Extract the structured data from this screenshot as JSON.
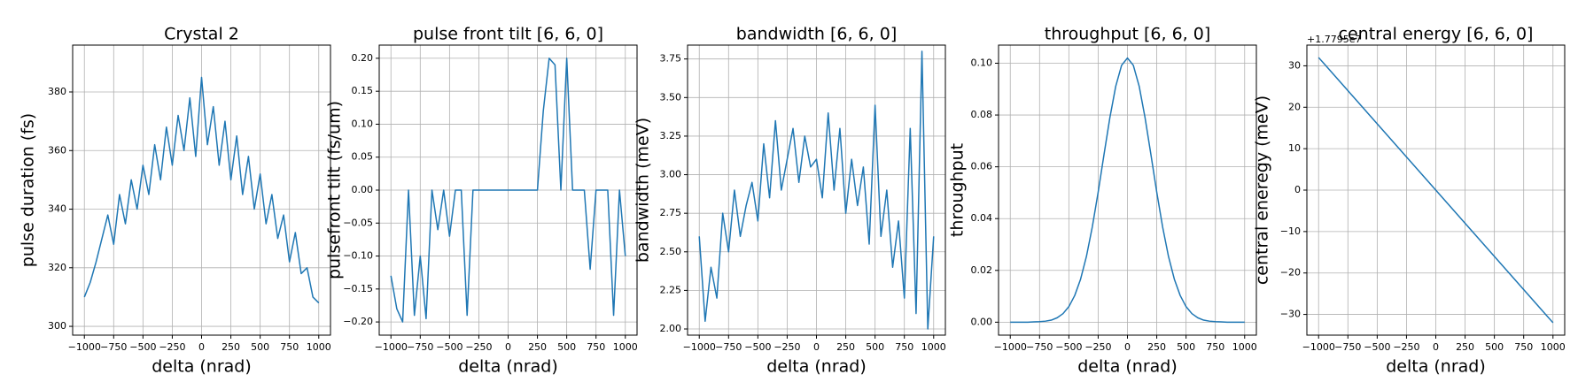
{
  "chart_data": [
    {
      "type": "line",
      "title": "Crystal 2",
      "xlabel": "delta (nrad)",
      "ylabel": "pulse duration (fs)",
      "color": "#1f77b4",
      "grid": true,
      "x": [
        -1000,
        -950,
        -900,
        -850,
        -800,
        -750,
        -700,
        -650,
        -600,
        -550,
        -500,
        -450,
        -400,
        -350,
        -300,
        -250,
        -200,
        -150,
        -100,
        -50,
        0,
        50,
        100,
        150,
        200,
        250,
        300,
        350,
        400,
        450,
        500,
        550,
        600,
        650,
        700,
        750,
        800,
        850,
        900,
        950,
        1000
      ],
      "values": [
        310,
        315,
        322,
        330,
        338,
        328,
        345,
        335,
        350,
        340,
        355,
        345,
        362,
        350,
        368,
        355,
        372,
        360,
        378,
        358,
        385,
        362,
        375,
        355,
        370,
        350,
        365,
        345,
        358,
        340,
        352,
        335,
        345,
        330,
        338,
        322,
        332,
        318,
        320,
        310,
        308
      ],
      "xlim": [
        -1100,
        1100
      ],
      "xticks": [
        {
          "value": -1000,
          "label": "−1000"
        },
        {
          "value": -750,
          "label": "−750"
        },
        {
          "value": -500,
          "label": "−500"
        },
        {
          "value": -250,
          "label": "−250"
        },
        0,
        250,
        500,
        750,
        1000
      ],
      "ylim": [
        297,
        396
      ],
      "yticks": [
        300,
        320,
        340,
        360,
        380
      ]
    },
    {
      "type": "line",
      "title": "pulse front tilt [6, 6, 0]",
      "xlabel": "delta (nrad)",
      "ylabel": "pulsefront tilt (fs/um)",
      "color": "#1f77b4",
      "grid": true,
      "x": [
        -1000,
        -950,
        -900,
        -850,
        -800,
        -750,
        -700,
        -650,
        -600,
        -550,
        -500,
        -450,
        -400,
        -350,
        -300,
        -250,
        -200,
        -150,
        -100,
        -50,
        0,
        50,
        100,
        150,
        200,
        250,
        300,
        350,
        400,
        450,
        500,
        550,
        600,
        650,
        700,
        750,
        800,
        850,
        900,
        950,
        1000
      ],
      "values": [
        -0.13,
        -0.18,
        -0.2,
        0,
        -0.19,
        -0.1,
        -0.195,
        0,
        -0.06,
        0,
        -0.07,
        0,
        0,
        -0.19,
        0,
        0,
        0,
        0,
        0,
        0,
        0,
        0,
        0,
        0,
        0,
        0,
        0.12,
        0.2,
        0.19,
        0,
        0.2,
        0,
        0,
        0,
        -0.12,
        0,
        0,
        0,
        -0.19,
        0,
        -0.1
      ],
      "xlim": [
        -1100,
        1100
      ],
      "xticks": [
        {
          "value": -1000,
          "label": "−1000"
        },
        {
          "value": -750,
          "label": "−750"
        },
        {
          "value": -500,
          "label": "−500"
        },
        {
          "value": -250,
          "label": "−250"
        },
        0,
        250,
        500,
        750,
        1000
      ],
      "ylim": [
        -0.22,
        0.22
      ],
      "yticks": [
        {
          "value": -0.2,
          "label": "−0.20"
        },
        {
          "value": -0.15,
          "label": "−0.15"
        },
        {
          "value": -0.1,
          "label": "−0.10"
        },
        {
          "value": -0.05,
          "label": "−0.05"
        },
        {
          "value": 0,
          "label": "0.00"
        },
        {
          "value": 0.05,
          "label": "0.05"
        },
        {
          "value": 0.1,
          "label": "0.10"
        },
        {
          "value": 0.15,
          "label": "0.15"
        },
        {
          "value": 0.2,
          "label": "0.20"
        }
      ]
    },
    {
      "type": "line",
      "title": "bandwidth [6, 6, 0]",
      "xlabel": "delta (nrad)",
      "ylabel": "bandwidth (meV)",
      "color": "#1f77b4",
      "grid": true,
      "x": [
        -1000,
        -950,
        -900,
        -850,
        -800,
        -750,
        -700,
        -650,
        -600,
        -550,
        -500,
        -450,
        -400,
        -350,
        -300,
        -250,
        -200,
        -150,
        -100,
        -50,
        0,
        50,
        100,
        150,
        200,
        250,
        300,
        350,
        400,
        450,
        500,
        550,
        600,
        650,
        700,
        750,
        800,
        850,
        900,
        950,
        1000
      ],
      "values": [
        2.6,
        2.05,
        2.4,
        2.2,
        2.75,
        2.5,
        2.9,
        2.6,
        2.8,
        2.95,
        2.7,
        3.2,
        2.85,
        3.35,
        2.9,
        3.1,
        3.3,
        2.95,
        3.25,
        3.05,
        3.1,
        2.85,
        3.4,
        2.9,
        3.3,
        2.75,
        3.1,
        2.8,
        3.05,
        2.55,
        3.45,
        2.6,
        2.9,
        2.4,
        2.7,
        2.2,
        3.3,
        2.1,
        3.8,
        2.0,
        2.6
      ],
      "xlim": [
        -1100,
        1100
      ],
      "xticks": [
        {
          "value": -1000,
          "label": "−1000"
        },
        {
          "value": -750,
          "label": "−750"
        },
        {
          "value": -500,
          "label": "−500"
        },
        {
          "value": -250,
          "label": "−250"
        },
        0,
        250,
        500,
        750,
        1000
      ],
      "ylim": [
        1.96,
        3.84
      ],
      "yticks": [
        {
          "value": 2,
          "label": "2.00"
        },
        2.25,
        {
          "value": 2.5,
          "label": "2.50"
        },
        2.75,
        {
          "value": 3,
          "label": "3.00"
        },
        3.25,
        {
          "value": 3.5,
          "label": "3.50"
        },
        3.75
      ]
    },
    {
      "type": "line",
      "title": "throughput [6, 6, 0]",
      "xlabel": "delta (nrad)",
      "ylabel": "throughput",
      "color": "#1f77b4",
      "grid": true,
      "x": [
        -1000,
        -950,
        -900,
        -850,
        -800,
        -750,
        -700,
        -650,
        -600,
        -550,
        -500,
        -450,
        -400,
        -350,
        -300,
        -250,
        -200,
        -150,
        -100,
        -50,
        0,
        50,
        100,
        150,
        200,
        250,
        300,
        350,
        400,
        450,
        500,
        550,
        600,
        650,
        700,
        750,
        800,
        850,
        900,
        950,
        1000
      ],
      "values": [
        0,
        0,
        0,
        0,
        0.0001,
        0.0002,
        0.0004,
        0.0008,
        0.0017,
        0.0033,
        0.006,
        0.0103,
        0.0166,
        0.0254,
        0.0368,
        0.0502,
        0.0648,
        0.079,
        0.0911,
        0.0992,
        0.102,
        0.0992,
        0.0911,
        0.079,
        0.0648,
        0.0502,
        0.0368,
        0.0254,
        0.0166,
        0.0103,
        0.006,
        0.0033,
        0.0017,
        0.0008,
        0.0004,
        0.0002,
        0.0001,
        0,
        0,
        0,
        0
      ],
      "xlim": [
        -1100,
        1100
      ],
      "xticks": [
        {
          "value": -1000,
          "label": "−1000"
        },
        {
          "value": -750,
          "label": "−750"
        },
        {
          "value": -500,
          "label": "−500"
        },
        {
          "value": -250,
          "label": "−250"
        },
        0,
        250,
        500,
        750,
        1000
      ],
      "ylim": [
        -0.005,
        0.107
      ],
      "yticks": [
        {
          "value": 0,
          "label": "0.00"
        },
        0.02,
        0.04,
        0.06,
        0.08,
        {
          "value": 0.1,
          "label": "0.10"
        }
      ]
    },
    {
      "type": "line",
      "title": "central energy [6, 6, 0]",
      "xlabel": "delta (nrad)",
      "ylabel": "central eneregy (meV)",
      "offset_text": "+1.7795e7",
      "color": "#1f77b4",
      "grid": true,
      "x": [
        -1000,
        -950,
        -900,
        -850,
        -800,
        -750,
        -700,
        -650,
        -600,
        -550,
        -500,
        -450,
        -400,
        -350,
        -300,
        -250,
        -200,
        -150,
        -100,
        -50,
        0,
        50,
        100,
        150,
        200,
        250,
        300,
        350,
        400,
        450,
        500,
        550,
        600,
        650,
        700,
        750,
        800,
        850,
        900,
        950,
        1000
      ],
      "values": [
        32,
        30.4,
        28.8,
        27.2,
        25.6,
        24,
        22.4,
        20.8,
        19.2,
        17.6,
        16,
        14.4,
        12.8,
        11.2,
        9.6,
        8,
        6.4,
        4.8,
        3.2,
        1.6,
        0,
        -1.6,
        -3.2,
        -4.8,
        -6.4,
        -8,
        -9.6,
        -11.2,
        -12.8,
        -14.4,
        -16,
        -17.6,
        -19.2,
        -20.8,
        -22.4,
        -24,
        -25.6,
        -27.2,
        -28.8,
        -30.4,
        -32
      ],
      "xlim": [
        -1100,
        1100
      ],
      "xticks": [
        {
          "value": -1000,
          "label": "−1000"
        },
        {
          "value": -750,
          "label": "−750"
        },
        {
          "value": -500,
          "label": "−500"
        },
        {
          "value": -250,
          "label": "−250"
        },
        0,
        250,
        500,
        750,
        1000
      ],
      "ylim": [
        -35,
        35
      ],
      "yticks": [
        {
          "value": -30,
          "label": "−30"
        },
        {
          "value": -20,
          "label": "−20"
        },
        {
          "value": -10,
          "label": "−10"
        },
        0,
        10,
        20,
        30
      ]
    }
  ]
}
